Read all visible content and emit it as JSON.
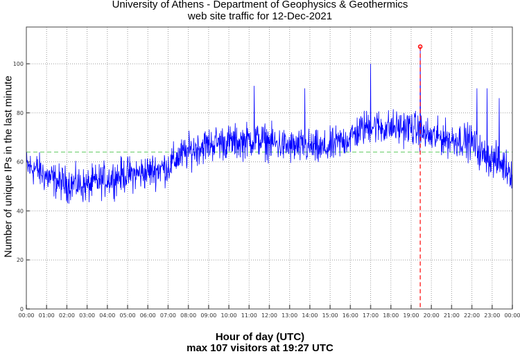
{
  "chart_data": {
    "type": "line",
    "title": "University of Athens - Department of Geophysics & Geothermics",
    "subtitle": "web site traffic for 12-Dec-2021",
    "xlabel": "Hour of day (UTC)",
    "xlabel2": "max 107 visitors at 19:27 UTC",
    "ylabel": "Number of unique IPs in the last minute",
    "xlim": [
      0,
      24
    ],
    "ylim": [
      0,
      115
    ],
    "grid": true,
    "xticks": [
      "00:00",
      "01:00",
      "02:00",
      "03:00",
      "04:00",
      "05:00",
      "06:00",
      "07:00",
      "08:00",
      "09:00",
      "10:00",
      "11:00",
      "12:00",
      "13:00",
      "14:00",
      "15:00",
      "16:00",
      "17:00",
      "18:00",
      "19:00",
      "20:00",
      "21:00",
      "22:00",
      "23:00",
      "00:00"
    ],
    "yticks": [
      0,
      20,
      40,
      60,
      80,
      100
    ],
    "x_step_hours": 0.5,
    "series": [
      {
        "name": "visitors",
        "color": "#0000ff",
        "values": [
          58,
          57,
          54,
          52,
          51,
          51,
          50,
          52,
          53,
          54,
          55,
          55,
          56,
          57,
          58,
          62,
          64,
          66,
          67,
          68,
          68,
          68,
          69,
          69,
          68,
          67,
          66,
          66,
          66,
          65,
          66,
          68,
          70,
          73,
          75,
          74,
          74,
          74,
          74,
          72,
          70,
          70,
          69,
          69,
          68,
          63,
          61,
          59,
          56
        ]
      }
    ],
    "spikes": [
      {
        "hour": 11.25,
        "value": 91
      },
      {
        "hour": 13.75,
        "value": 90
      },
      {
        "hour": 17.0,
        "value": 100
      },
      {
        "hour": 19.45,
        "value": 107
      },
      {
        "hour": 22.25,
        "value": 90
      },
      {
        "hour": 22.75,
        "value": 90
      },
      {
        "hour": 23.35,
        "value": 86
      }
    ],
    "mean": 64,
    "mean_color": "#66cc66",
    "max": {
      "hour": 19.45,
      "value": 107,
      "color": "#ff0000"
    }
  }
}
